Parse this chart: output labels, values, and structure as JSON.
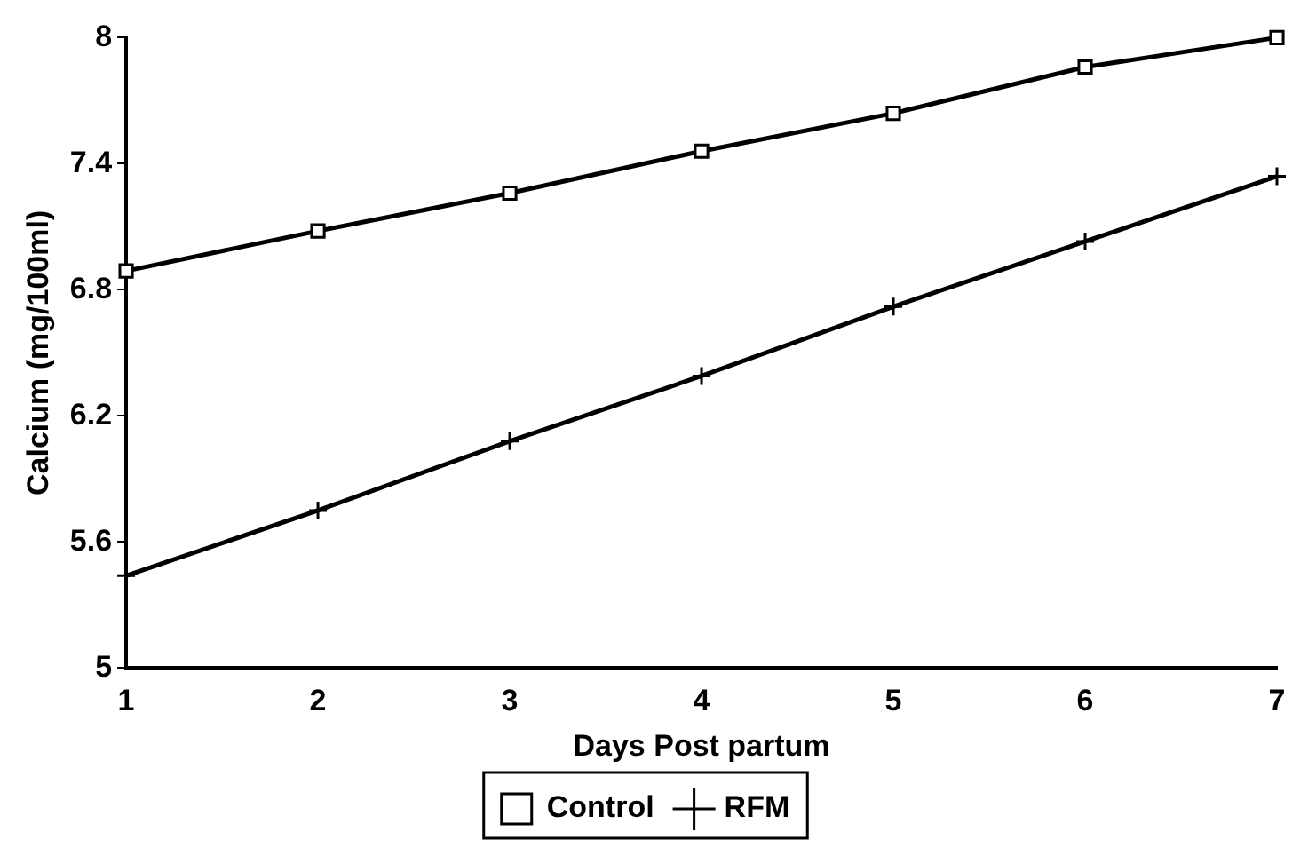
{
  "chart_data": {
    "type": "line",
    "xlabel": "Days Post partum",
    "ylabel": "Calcium (mg/100ml)",
    "x": [
      1,
      2,
      3,
      4,
      5,
      6,
      7
    ],
    "series": [
      {
        "name": "Control",
        "color": "#000000",
        "marker": "square",
        "values": [
          6.89,
          7.08,
          7.26,
          7.46,
          7.64,
          7.86,
          8.0
        ]
      },
      {
        "name": "RFM",
        "color": "#000000",
        "marker": "cross",
        "values": [
          5.44,
          5.75,
          6.08,
          6.39,
          6.72,
          7.03,
          7.34
        ]
      }
    ],
    "xlim": [
      1,
      7
    ],
    "xticks": [
      1,
      2,
      3,
      4,
      5,
      6,
      7
    ],
    "ylim": [
      5,
      8
    ],
    "yticks": [
      5,
      5.6,
      6.2,
      6.8,
      7.4,
      8
    ],
    "grid": false,
    "legend": "bottom",
    "line_style": "solid"
  }
}
